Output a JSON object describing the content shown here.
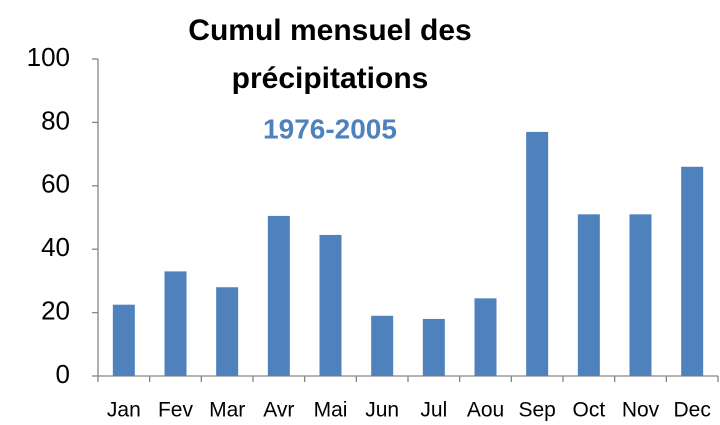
{
  "chart_data": {
    "type": "bar",
    "title": [
      "Cumul mensuel des",
      "précipitations"
    ],
    "subtitle": "1976-2005",
    "categories": [
      "Jan",
      "Fev",
      "Mar",
      "Avr",
      "Mai",
      "Jun",
      "Jul",
      "Aou",
      "Sep",
      "Oct",
      "Nov",
      "Dec"
    ],
    "values": [
      22.5,
      33,
      28,
      50.5,
      44.5,
      19,
      18,
      24.5,
      77,
      51,
      51,
      66
    ],
    "color": "#4f81bd",
    "subtitle_color": "#4f81bd",
    "ylim": [
      0,
      100
    ],
    "yticks": [
      0,
      20,
      40,
      60,
      80,
      100
    ],
    "grid": false
  }
}
